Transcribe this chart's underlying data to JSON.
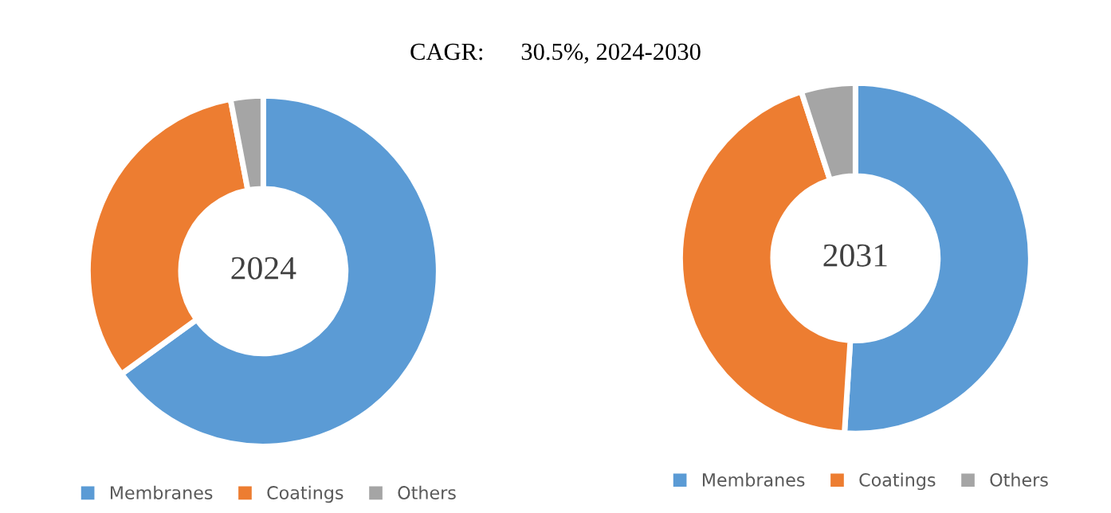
{
  "chart_data": [
    {
      "type": "donut",
      "title": "CAGR:      30.5%, 2024-2030",
      "annotations": [
        "2024"
      ],
      "categories": [
        "Membranes",
        "Coatings",
        "Others"
      ],
      "values": [
        65,
        32,
        3
      ],
      "colors": [
        "#5b9bd5",
        "#ed7d31",
        "#a5a5a5"
      ],
      "legend": "bottom"
    },
    {
      "type": "donut",
      "annotations": [
        "2031"
      ],
      "categories": [
        "Membranes",
        "Coatings",
        "Others"
      ],
      "values": [
        51,
        44,
        5
      ],
      "colors": [
        "#5b9bd5",
        "#ed7d31",
        "#a5a5a5"
      ],
      "legend": "bottom"
    }
  ]
}
